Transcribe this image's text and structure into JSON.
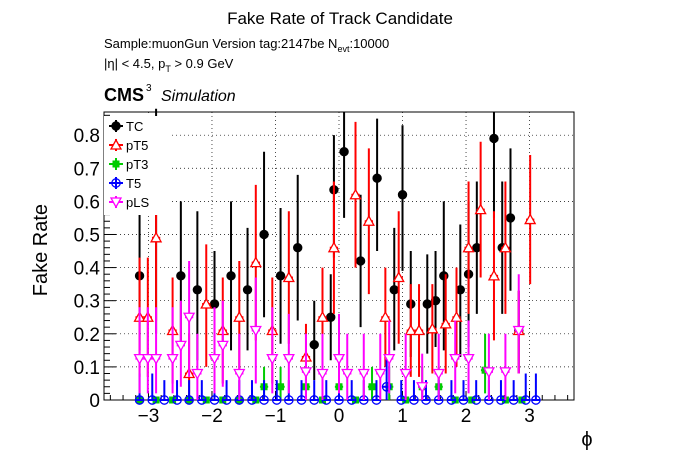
{
  "header": {
    "title": "Fake Rate of Track Candidate",
    "sample_line": "Sample:muonGun   Version tag:2147be  N",
    "nevt_sub": "evt",
    "nevt_value": ":10000",
    "cut_prefix": "|η| < 4.5, p",
    "cut_sub": "T",
    "cut_suffix": " > 0.9 GeV",
    "cms": "CMS",
    "cms_sup": "3",
    "simulation": "Simulation"
  },
  "chart_data": {
    "type": "scatter",
    "title": "Fake Rate of Track Candidate",
    "xlabel": "ϕ",
    "ylabel": "Fake Rate",
    "xlim": [
      -3.7,
      3.7
    ],
    "ylim": [
      0,
      0.87
    ],
    "grid": true,
    "legend_position": "top-left",
    "x_ticks": [
      "−3",
      "−2",
      "−1",
      "0",
      "1",
      "2",
      "3"
    ],
    "y_ticks": [
      "0",
      "0.1",
      "0.2",
      "0.3",
      "0.4",
      "0.5",
      "0.6",
      "0.7",
      "0.8"
    ],
    "series": [
      {
        "name": "TC",
        "color": "#000000",
        "marker": "filled-circle",
        "points": [
          {
            "x": -3.14,
            "y": 0.375,
            "lo": 0.15,
            "hi": 0.6
          },
          {
            "x": -2.88,
            "y": 0.62,
            "lo": 0.2,
            "hi": 0.88
          },
          {
            "x": -2.49,
            "y": 0.375,
            "lo": 0.15,
            "hi": 0.6
          },
          {
            "x": -2.23,
            "y": 0.333,
            "lo": 0.12,
            "hi": 0.57
          },
          {
            "x": -1.96,
            "y": 0.29,
            "lo": 0.13,
            "hi": 0.45
          },
          {
            "x": -1.7,
            "y": 0.375,
            "lo": 0.15,
            "hi": 0.6
          },
          {
            "x": -1.44,
            "y": 0.333,
            "lo": 0.15,
            "hi": 0.52
          },
          {
            "x": -1.18,
            "y": 0.5,
            "lo": 0.25,
            "hi": 0.75
          },
          {
            "x": -0.92,
            "y": 0.375,
            "lo": 0.17,
            "hi": 0.58
          },
          {
            "x": -0.65,
            "y": 0.46,
            "lo": 0.24,
            "hi": 0.68
          },
          {
            "x": -0.39,
            "y": 0.167,
            "lo": 0.06,
            "hi": 0.3
          },
          {
            "x": -0.13,
            "y": 0.25,
            "lo": 0.12,
            "hi": 0.38
          },
          {
            "x": -0.08,
            "y": 0.635,
            "lo": 0.43,
            "hi": 0.8
          },
          {
            "x": 0.08,
            "y": 0.75,
            "lo": 0.55,
            "hi": 0.87
          },
          {
            "x": 0.34,
            "y": 0.42,
            "lo": 0.22,
            "hi": 0.62
          },
          {
            "x": 0.6,
            "y": 0.67,
            "lo": 0.45,
            "hi": 0.85
          },
          {
            "x": 0.87,
            "y": 0.333,
            "lo": 0.15,
            "hi": 0.52
          },
          {
            "x": 1.0,
            "y": 0.62,
            "lo": 0.39,
            "hi": 0.83
          },
          {
            "x": 1.13,
            "y": 0.29,
            "lo": 0.13,
            "hi": 0.45
          },
          {
            "x": 1.39,
            "y": 0.29,
            "lo": 0.14,
            "hi": 0.44
          },
          {
            "x": 1.52,
            "y": 0.3,
            "lo": 0.16,
            "hi": 0.45
          },
          {
            "x": 1.65,
            "y": 0.375,
            "lo": 0.15,
            "hi": 0.6
          },
          {
            "x": 1.91,
            "y": 0.333,
            "lo": 0.13,
            "hi": 0.53
          },
          {
            "x": 2.04,
            "y": 0.38,
            "lo": 0.16,
            "hi": 0.6
          },
          {
            "x": 2.17,
            "y": 0.46,
            "lo": 0.26,
            "hi": 0.66
          },
          {
            "x": 2.44,
            "y": 0.79,
            "lo": 0.55,
            "hi": 0.87
          },
          {
            "x": 2.57,
            "y": 0.46,
            "lo": 0.26,
            "hi": 0.66
          },
          {
            "x": 2.7,
            "y": 0.55,
            "lo": 0.33,
            "hi": 0.76
          },
          {
            "x": 2.83,
            "y": 0.21,
            "lo": 0.08,
            "hi": 0.33
          }
        ]
      },
      {
        "name": "pT5",
        "color": "#ff0000",
        "marker": "open-triangle",
        "points": [
          {
            "x": -3.14,
            "y": 0.25,
            "lo": 0.07,
            "hi": 0.43
          },
          {
            "x": -3.01,
            "y": 0.25,
            "lo": 0.07,
            "hi": 0.43
          },
          {
            "x": -2.88,
            "y": 0.49,
            "lo": 0.24,
            "hi": 0.75
          },
          {
            "x": -2.62,
            "y": 0.21,
            "lo": 0.05,
            "hi": 0.37
          },
          {
            "x": -2.36,
            "y": 0.08,
            "lo": 0.0,
            "hi": 0.2
          },
          {
            "x": -2.09,
            "y": 0.29,
            "lo": 0.1,
            "hi": 0.47
          },
          {
            "x": -1.83,
            "y": 0.21,
            "lo": 0.05,
            "hi": 0.37
          },
          {
            "x": -1.57,
            "y": 0.25,
            "lo": 0.08,
            "hi": 0.42
          },
          {
            "x": -1.31,
            "y": 0.415,
            "lo": 0.18,
            "hi": 0.65
          },
          {
            "x": -1.05,
            "y": 0.21,
            "lo": 0.05,
            "hi": 0.37
          },
          {
            "x": -0.79,
            "y": 0.37,
            "lo": 0.17,
            "hi": 0.57
          },
          {
            "x": -0.52,
            "y": 0.13,
            "lo": 0.03,
            "hi": 0.23
          },
          {
            "x": -0.26,
            "y": 0.25,
            "lo": 0.1,
            "hi": 0.4
          },
          {
            "x": -0.08,
            "y": 0.46,
            "lo": 0.26,
            "hi": 0.66
          },
          {
            "x": 0.26,
            "y": 0.62,
            "lo": 0.4,
            "hi": 0.84
          },
          {
            "x": 0.47,
            "y": 0.54,
            "lo": 0.32,
            "hi": 0.76
          },
          {
            "x": 0.73,
            "y": 0.25,
            "lo": 0.1,
            "hi": 0.4
          },
          {
            "x": 0.94,
            "y": 0.37,
            "lo": 0.17,
            "hi": 0.57
          },
          {
            "x": 1.13,
            "y": 0.21,
            "lo": 0.07,
            "hi": 0.35
          },
          {
            "x": 1.26,
            "y": 0.21,
            "lo": 0.07,
            "hi": 0.35
          },
          {
            "x": 1.47,
            "y": 0.215,
            "lo": 0.08,
            "hi": 0.35
          },
          {
            "x": 1.68,
            "y": 0.23,
            "lo": 0.08,
            "hi": 0.38
          },
          {
            "x": 1.85,
            "y": 0.25,
            "lo": 0.1,
            "hi": 0.4
          },
          {
            "x": 2.04,
            "y": 0.46,
            "lo": 0.26,
            "hi": 0.66
          },
          {
            "x": 2.23,
            "y": 0.575,
            "lo": 0.37,
            "hi": 0.78
          },
          {
            "x": 2.44,
            "y": 0.375,
            "lo": 0.18,
            "hi": 0.57
          },
          {
            "x": 2.62,
            "y": 0.46,
            "lo": 0.26,
            "hi": 0.66
          },
          {
            "x": 2.83,
            "y": 0.21,
            "lo": 0.08,
            "hi": 0.33
          },
          {
            "x": 3.01,
            "y": 0.545,
            "lo": 0.35,
            "hi": 0.74
          }
        ]
      },
      {
        "name": "pT3",
        "color": "#00cc00",
        "marker": "filled-square",
        "points": [
          {
            "x": -3.14,
            "y": 0,
            "lo": 0,
            "hi": 0
          },
          {
            "x": -2.88,
            "y": 0,
            "lo": 0,
            "hi": 0
          },
          {
            "x": -2.62,
            "y": 0,
            "lo": 0,
            "hi": 0
          },
          {
            "x": -2.36,
            "y": 0,
            "lo": 0,
            "hi": 0
          },
          {
            "x": -2.09,
            "y": 0,
            "lo": 0,
            "hi": 0
          },
          {
            "x": -1.83,
            "y": 0,
            "lo": 0,
            "hi": 0
          },
          {
            "x": -1.57,
            "y": 0,
            "lo": 0,
            "hi": 0
          },
          {
            "x": -1.31,
            "y": 0,
            "lo": 0,
            "hi": 0
          },
          {
            "x": -1.18,
            "y": 0.04,
            "lo": 0.0,
            "hi": 0.1
          },
          {
            "x": -0.92,
            "y": 0.04,
            "lo": 0.0,
            "hi": 0.1
          },
          {
            "x": -0.52,
            "y": 0.04,
            "lo": 0.0,
            "hi": 0.1
          },
          {
            "x": -0.26,
            "y": 0,
            "lo": 0,
            "hi": 0
          },
          {
            "x": 0.0,
            "y": 0.04,
            "lo": 0.0,
            "hi": 0.1
          },
          {
            "x": 0.26,
            "y": 0,
            "lo": 0,
            "hi": 0
          },
          {
            "x": 0.52,
            "y": 0.04,
            "lo": 0.0,
            "hi": 0.1
          },
          {
            "x": 0.79,
            "y": 0.04,
            "lo": 0.0,
            "hi": 0.1
          },
          {
            "x": 1.05,
            "y": 0,
            "lo": 0,
            "hi": 0
          },
          {
            "x": 1.31,
            "y": 0.04,
            "lo": 0.0,
            "hi": 0.1
          },
          {
            "x": 1.57,
            "y": 0.04,
            "lo": 0.0,
            "hi": 0.1
          },
          {
            "x": 1.83,
            "y": 0,
            "lo": 0,
            "hi": 0
          },
          {
            "x": 2.09,
            "y": 0,
            "lo": 0,
            "hi": 0
          },
          {
            "x": 2.3,
            "y": 0.09,
            "lo": 0.02,
            "hi": 0.2
          },
          {
            "x": 2.62,
            "y": 0,
            "lo": 0,
            "hi": 0
          },
          {
            "x": 2.88,
            "y": 0,
            "lo": 0,
            "hi": 0
          }
        ]
      },
      {
        "name": "T5",
        "color": "#0000ff",
        "marker": "open-circle",
        "points": [
          {
            "x": -3.14,
            "y": 0,
            "lo": 0,
            "hi": 0.08
          },
          {
            "x": -2.94,
            "y": 0,
            "lo": 0,
            "hi": 0.08
          },
          {
            "x": -2.75,
            "y": 0,
            "lo": 0,
            "hi": 0.06
          },
          {
            "x": -2.55,
            "y": 0,
            "lo": 0,
            "hi": 0.06
          },
          {
            "x": -2.36,
            "y": 0,
            "lo": 0,
            "hi": 0.06
          },
          {
            "x": -2.16,
            "y": 0,
            "lo": 0,
            "hi": 0.06
          },
          {
            "x": -1.96,
            "y": 0,
            "lo": 0,
            "hi": 0.06
          },
          {
            "x": -1.77,
            "y": 0,
            "lo": 0,
            "hi": 0.06
          },
          {
            "x": -1.57,
            "y": 0,
            "lo": 0,
            "hi": 0.06
          },
          {
            "x": -1.37,
            "y": 0,
            "lo": 0,
            "hi": 0.06
          },
          {
            "x": -1.18,
            "y": 0,
            "lo": 0,
            "hi": 0.06
          },
          {
            "x": -0.98,
            "y": 0,
            "lo": 0,
            "hi": 0.06
          },
          {
            "x": -0.79,
            "y": 0,
            "lo": 0,
            "hi": 0.06
          },
          {
            "x": -0.59,
            "y": 0,
            "lo": 0,
            "hi": 0.06
          },
          {
            "x": -0.39,
            "y": 0,
            "lo": 0,
            "hi": 0.06
          },
          {
            "x": -0.2,
            "y": 0,
            "lo": 0,
            "hi": 0.06
          },
          {
            "x": 0.0,
            "y": 0,
            "lo": 0,
            "hi": 0.06
          },
          {
            "x": 0.2,
            "y": 0,
            "lo": 0,
            "hi": 0.06
          },
          {
            "x": 0.39,
            "y": 0,
            "lo": 0,
            "hi": 0.06
          },
          {
            "x": 0.59,
            "y": 0,
            "lo": 0,
            "hi": 0.06
          },
          {
            "x": 0.75,
            "y": 0.04,
            "lo": 0.0,
            "hi": 0.13
          },
          {
            "x": 0.98,
            "y": 0,
            "lo": 0,
            "hi": 0.06
          },
          {
            "x": 1.18,
            "y": 0,
            "lo": 0,
            "hi": 0.06
          },
          {
            "x": 1.37,
            "y": 0,
            "lo": 0,
            "hi": 0.06
          },
          {
            "x": 1.57,
            "y": 0,
            "lo": 0,
            "hi": 0.06
          },
          {
            "x": 1.77,
            "y": 0,
            "lo": 0,
            "hi": 0.06
          },
          {
            "x": 1.96,
            "y": 0,
            "lo": 0,
            "hi": 0.06
          },
          {
            "x": 2.16,
            "y": 0,
            "lo": 0,
            "hi": 0.06
          },
          {
            "x": 2.36,
            "y": 0,
            "lo": 0,
            "hi": 0.06
          },
          {
            "x": 2.55,
            "y": 0,
            "lo": 0,
            "hi": 0.06
          },
          {
            "x": 2.75,
            "y": 0,
            "lo": 0,
            "hi": 0.06
          },
          {
            "x": 2.94,
            "y": 0,
            "lo": 0,
            "hi": 0.08
          },
          {
            "x": 3.1,
            "y": 0,
            "lo": 0,
            "hi": 0.08
          }
        ]
      },
      {
        "name": "pLS",
        "color": "#ff00ff",
        "marker": "open-triangle-down",
        "points": [
          {
            "x": -3.14,
            "y": 0.125,
            "lo": 0.02,
            "hi": 0.28
          },
          {
            "x": -3.01,
            "y": 0.125,
            "lo": 0.02,
            "hi": 0.28
          },
          {
            "x": -2.88,
            "y": 0.125,
            "lo": 0.02,
            "hi": 0.28
          },
          {
            "x": -2.62,
            "y": 0.125,
            "lo": 0.02,
            "hi": 0.28
          },
          {
            "x": -2.49,
            "y": 0.165,
            "lo": 0.04,
            "hi": 0.3
          },
          {
            "x": -2.36,
            "y": 0.25,
            "lo": 0.07,
            "hi": 0.42
          },
          {
            "x": -2.23,
            "y": 0.08,
            "lo": 0.0,
            "hi": 0.2
          },
          {
            "x": -1.96,
            "y": 0.125,
            "lo": 0.02,
            "hi": 0.28
          },
          {
            "x": -1.83,
            "y": 0.165,
            "lo": 0.04,
            "hi": 0.3
          },
          {
            "x": -1.57,
            "y": 0.08,
            "lo": 0.0,
            "hi": 0.2
          },
          {
            "x": -1.31,
            "y": 0.21,
            "lo": 0.05,
            "hi": 0.37
          },
          {
            "x": -1.05,
            "y": 0.125,
            "lo": 0.02,
            "hi": 0.28
          },
          {
            "x": -0.79,
            "y": 0.125,
            "lo": 0.02,
            "hi": 0.26
          },
          {
            "x": -0.52,
            "y": 0.085,
            "lo": 0.0,
            "hi": 0.2
          },
          {
            "x": -0.26,
            "y": 0.08,
            "lo": 0.0,
            "hi": 0.2
          },
          {
            "x": 0.0,
            "y": 0.125,
            "lo": 0.02,
            "hi": 0.26
          },
          {
            "x": 0.13,
            "y": 0.08,
            "lo": 0.0,
            "hi": 0.2
          },
          {
            "x": 0.39,
            "y": 0.08,
            "lo": 0.0,
            "hi": 0.2
          },
          {
            "x": 0.65,
            "y": 0.08,
            "lo": 0.0,
            "hi": 0.2
          },
          {
            "x": 0.79,
            "y": 0.125,
            "lo": 0.02,
            "hi": 0.24
          },
          {
            "x": 1.05,
            "y": 0.08,
            "lo": 0.0,
            "hi": 0.2
          },
          {
            "x": 1.31,
            "y": 0.04,
            "lo": 0.0,
            "hi": 0.14
          },
          {
            "x": 1.57,
            "y": 0.08,
            "lo": 0.0,
            "hi": 0.2
          },
          {
            "x": 1.83,
            "y": 0.125,
            "lo": 0.02,
            "hi": 0.24
          },
          {
            "x": 2.04,
            "y": 0.125,
            "lo": 0.02,
            "hi": 0.24
          },
          {
            "x": 2.36,
            "y": 0.085,
            "lo": 0.0,
            "hi": 0.2
          },
          {
            "x": 2.62,
            "y": 0.085,
            "lo": 0.0,
            "hi": 0.2
          },
          {
            "x": 2.83,
            "y": 0.21,
            "lo": 0.08,
            "hi": 0.38
          }
        ]
      }
    ]
  }
}
